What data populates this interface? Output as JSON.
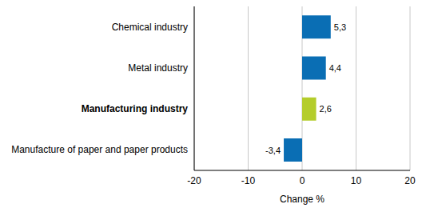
{
  "chart_data": {
    "type": "bar",
    "orientation": "horizontal",
    "categories": [
      "Chemical industry",
      "Metal industry",
      "Manufacturing industry",
      "Manufacture of paper and paper products"
    ],
    "values": [
      5.3,
      4.4,
      2.6,
      -3.4
    ],
    "value_labels": [
      "5,3",
      "4,4",
      "2,6",
      "-3,4"
    ],
    "colors": [
      "#0a6eb4",
      "#0a6eb4",
      "#b4cd2b",
      "#0a6eb4"
    ],
    "xlabel": "Change %",
    "xlim": [
      -20,
      20
    ],
    "xticks": [
      -20,
      -10,
      0,
      10,
      20
    ],
    "grid": true,
    "data_labels": true
  }
}
